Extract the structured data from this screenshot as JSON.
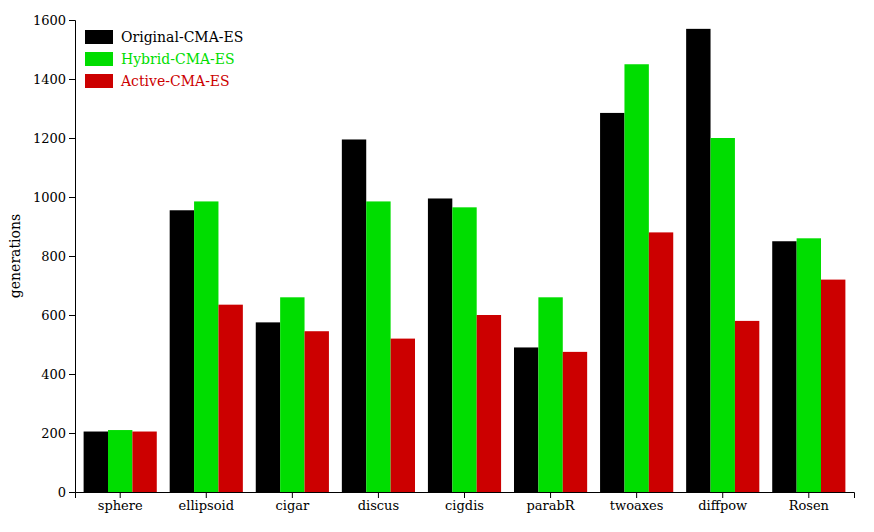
{
  "chart_data": {
    "type": "bar",
    "ylabel": "generations",
    "categories": [
      "sphere",
      "ellipsoid",
      "cigar",
      "discus",
      "cigdis",
      "parabR",
      "twoaxes",
      "diffpow",
      "Rosen"
    ],
    "series": [
      {
        "name": "Original-CMA-ES",
        "color": "#000000",
        "values": [
          205,
          955,
          575,
          1195,
          995,
          490,
          1285,
          1570,
          850
        ]
      },
      {
        "name": "Hybrid-CMA-ES",
        "color": "#00dd00",
        "values": [
          210,
          985,
          660,
          985,
          965,
          660,
          1450,
          1200,
          860
        ]
      },
      {
        "name": "Active-CMA-ES",
        "color": "#cc0000",
        "values": [
          205,
          635,
          545,
          520,
          600,
          475,
          880,
          580,
          720
        ]
      }
    ],
    "ylim": [
      0,
      1600
    ],
    "yticks": [
      0,
      200,
      400,
      600,
      800,
      1000,
      1200,
      1400,
      1600
    ],
    "grid": false,
    "legend": "upper left"
  }
}
